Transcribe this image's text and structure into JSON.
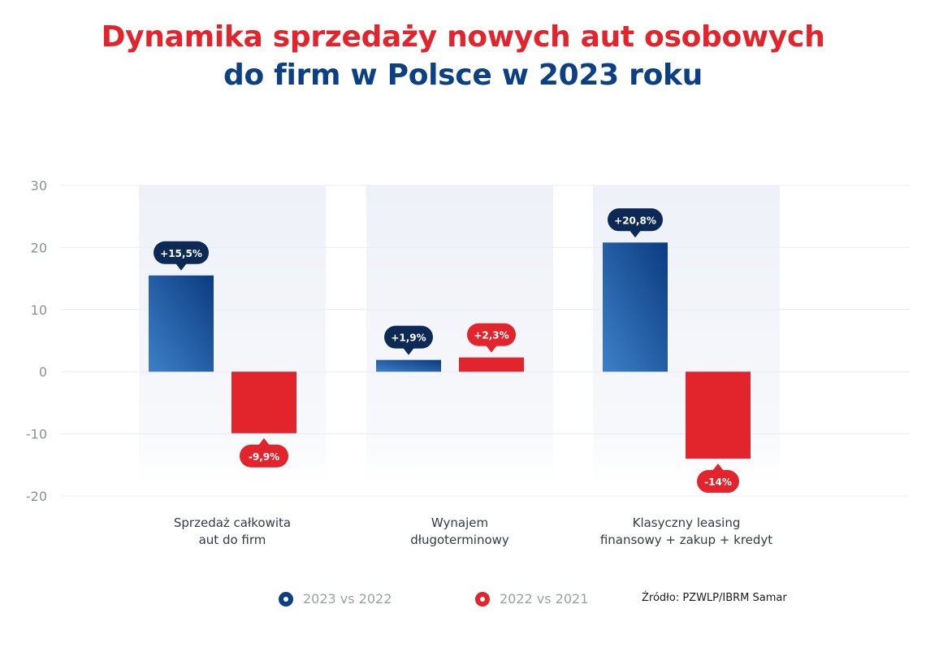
{
  "title": {
    "line1": "Dynamika sprzedaży nowych aut osobowych",
    "line2": "do firm w Polsce w 2023 roku"
  },
  "colors": {
    "title_red": "#e2252c",
    "title_blue": "#0d3f84",
    "series_blue_dark": "#0b3b80",
    "series_blue_light": "#3d80c8",
    "series_red": "#e2252c",
    "badge_navy": "#0d2a56",
    "panel_bg": "#eef1f8"
  },
  "chart_data": {
    "type": "bar",
    "categories": [
      "Sprzedaż całkowita\naut do firm",
      "Wynajem\ndługoterminowy",
      "Klasyczny leasing\nfinansowy + zakup + kredyt"
    ],
    "series": [
      {
        "name": "2023 vs 2022",
        "values": [
          15.5,
          1.9,
          20.8
        ],
        "labels": [
          "+15,5%",
          "+1,9%",
          "+20,8%"
        ]
      },
      {
        "name": "2022 vs 2021",
        "values": [
          -9.9,
          2.3,
          -14
        ],
        "labels": [
          "-9,9%",
          "+2,3%",
          "-14%"
        ]
      }
    ],
    "ylim": [
      -20,
      30
    ],
    "yticks": [
      30,
      20,
      10,
      0,
      -10,
      -20
    ],
    "grid": true,
    "legend_position": "bottom"
  },
  "source": "Źródło: PZWLP/IBRM Samar"
}
